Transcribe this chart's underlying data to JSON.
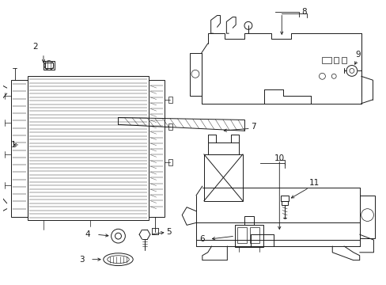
{
  "bg_color": "#ffffff",
  "line_color": "#1a1a1a",
  "label_color": "#000000",
  "fig_width": 4.89,
  "fig_height": 3.6,
  "dpi": 100,
  "label_fs": 7.5,
  "lw": 0.7
}
